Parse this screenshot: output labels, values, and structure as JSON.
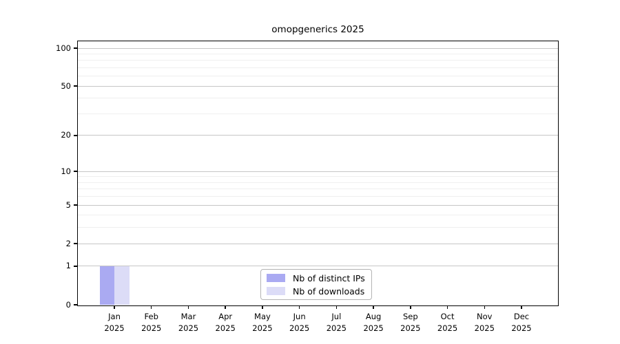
{
  "figure": {
    "title": "omopgenerics 2025"
  },
  "chart_data": {
    "type": "bar",
    "title": "omopgenerics 2025",
    "xlabel": "",
    "ylabel": "",
    "categories": [
      {
        "month": "Jan",
        "year": "2025"
      },
      {
        "month": "Feb",
        "year": "2025"
      },
      {
        "month": "Mar",
        "year": "2025"
      },
      {
        "month": "Apr",
        "year": "2025"
      },
      {
        "month": "May",
        "year": "2025"
      },
      {
        "month": "Jun",
        "year": "2025"
      },
      {
        "month": "Jul",
        "year": "2025"
      },
      {
        "month": "Aug",
        "year": "2025"
      },
      {
        "month": "Sep",
        "year": "2025"
      },
      {
        "month": "Oct",
        "year": "2025"
      },
      {
        "month": "Nov",
        "year": "2025"
      },
      {
        "month": "Dec",
        "year": "2025"
      }
    ],
    "series": [
      {
        "name": "Nb of distinct IPs",
        "color": "#aaaaf2",
        "values": [
          1,
          0,
          0,
          0,
          0,
          0,
          0,
          0,
          0,
          0,
          0,
          0
        ]
      },
      {
        "name": "Nb of downloads",
        "color": "#dcdcf7",
        "values": [
          1,
          0,
          0,
          0,
          0,
          0,
          0,
          0,
          0,
          0,
          0,
          0
        ]
      }
    ],
    "yscale": "log1p",
    "ylim": [
      0,
      115
    ],
    "yticks": [
      0,
      1,
      2,
      5,
      10,
      20,
      50,
      100
    ],
    "ytick_labels": [
      "0",
      "1",
      "2",
      "5",
      "10",
      "20",
      "50",
      "100"
    ],
    "minor_gridlines": [
      3,
      4,
      6,
      7,
      8,
      9,
      30,
      40,
      60,
      70,
      80,
      90
    ],
    "grid": "horizontal",
    "legend_position": "bottom-center"
  },
  "legend": {
    "items": [
      {
        "label": "Nb of distinct IPs",
        "color": "#aaaaf2"
      },
      {
        "label": "Nb of downloads",
        "color": "#dcdcf7"
      }
    ]
  },
  "colors": {
    "background": "#ffffff",
    "axis": "#000000",
    "grid_major": "#c6c6c6",
    "grid_minor": "#efefef",
    "text": "#000000"
  }
}
